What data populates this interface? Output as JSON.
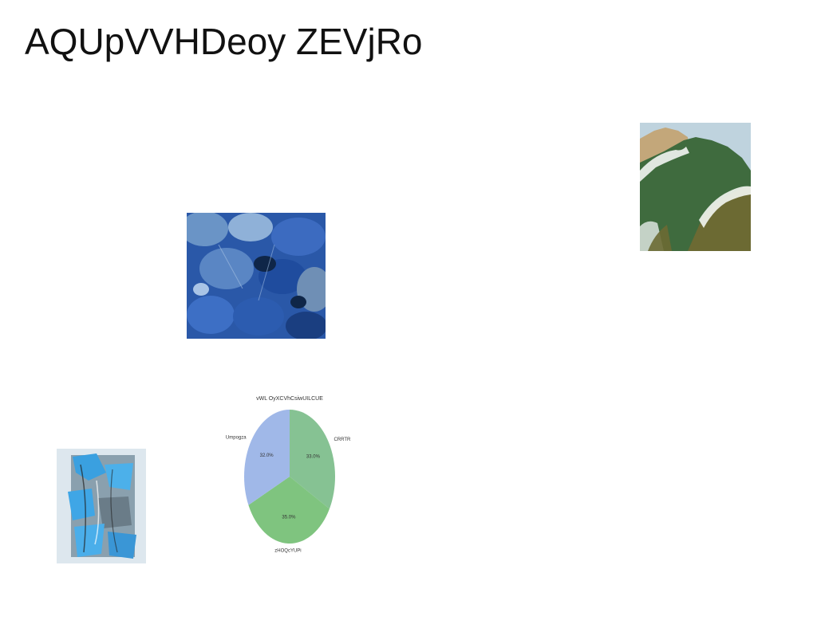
{
  "page": {
    "title": "AQUpVVHDeoy ZEVjRo"
  },
  "images": {
    "mountain": "mountain-landscape-image",
    "leaves": "blue-leaves-image",
    "abstract": "blue-abstract-painting-image"
  },
  "chart_data": {
    "type": "pie",
    "title": "vWL OyXCVhCsiwUILCUE",
    "labels": [
      "CRRTR",
      "zHOQcYUPi",
      "Umpogza"
    ],
    "values": [
      33.0,
      35.0,
      32.0
    ],
    "value_labels": [
      "33.0%",
      "35.0%",
      "32.0%"
    ],
    "colors": [
      "#86c293",
      "#7fc47f",
      "#a0b8e8"
    ],
    "start_angle_deg": 90,
    "direction": "clockwise"
  }
}
